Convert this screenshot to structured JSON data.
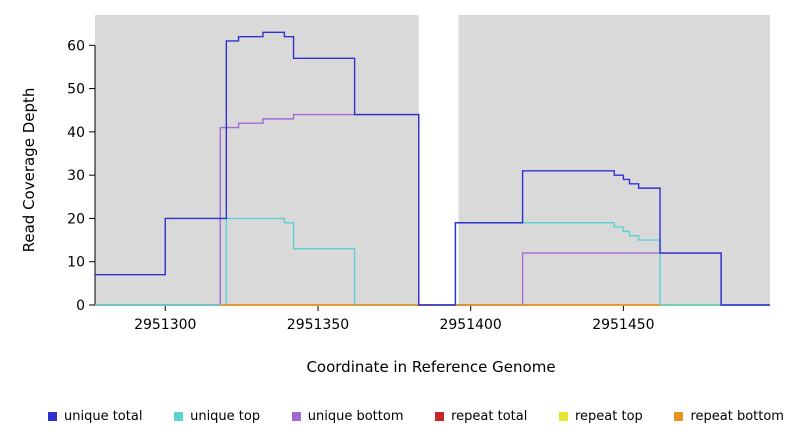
{
  "chart_data": {
    "type": "line",
    "subtype": "step-coverage-plot",
    "title": "",
    "xlabel": "Coordinate in Reference Genome",
    "ylabel": "Read Coverage Depth",
    "x_range": [
      2951277,
      2951498
    ],
    "x_ticks": [
      2951300,
      2951350,
      2951400,
      2951450
    ],
    "y_ticks": [
      0,
      10,
      20,
      30,
      40,
      50,
      60
    ],
    "y_max_display": 67,
    "panel_bg": "#d9d9d9",
    "axis_color": "#000000",
    "grid": "off",
    "legend_position": "bottom",
    "gap_band": {
      "x_start": 2951383,
      "x_end": 2951396,
      "color": "#ffffff"
    },
    "draw_order": [
      3,
      4,
      2,
      1,
      5,
      0
    ],
    "series": [
      {
        "name": "unique total",
        "color": "#3030cf",
        "points": [
          [
            2951277,
            7
          ],
          [
            2951300,
            20
          ],
          [
            2951320,
            61
          ],
          [
            2951324,
            62
          ],
          [
            2951332,
            63
          ],
          [
            2951339,
            62
          ],
          [
            2951342,
            57
          ],
          [
            2951362,
            44
          ],
          [
            2951383,
            0
          ],
          [
            2951395,
            19
          ],
          [
            2951417,
            31
          ],
          [
            2951447,
            30
          ],
          [
            2951450,
            29
          ],
          [
            2951452,
            28
          ],
          [
            2951455,
            27
          ],
          [
            2951462,
            12
          ],
          [
            2951482,
            0
          ],
          [
            2951498,
            0
          ]
        ]
      },
      {
        "name": "unique top",
        "color": "#5ad2d2",
        "points": [
          [
            2951277,
            0
          ],
          [
            2951320,
            20
          ],
          [
            2951339,
            19
          ],
          [
            2951342,
            13
          ],
          [
            2951362,
            0
          ],
          [
            2951395,
            19
          ],
          [
            2951447,
            18
          ],
          [
            2951450,
            17
          ],
          [
            2951452,
            16
          ],
          [
            2951455,
            15
          ],
          [
            2951462,
            0
          ],
          [
            2951498,
            0
          ]
        ]
      },
      {
        "name": "unique bottom",
        "color": "#a06ad2",
        "points": [
          [
            2951277,
            0
          ],
          [
            2951318,
            41
          ],
          [
            2951324,
            42
          ],
          [
            2951332,
            43
          ],
          [
            2951342,
            44
          ],
          [
            2951383,
            0
          ],
          [
            2951417,
            12
          ],
          [
            2951482,
            0
          ],
          [
            2951498,
            0
          ]
        ]
      },
      {
        "name": "repeat total",
        "color": "#c62828",
        "points": [
          [
            2951277,
            0
          ],
          [
            2951498,
            0
          ]
        ]
      },
      {
        "name": "repeat top",
        "color": "#e6e62e",
        "points": [
          [
            2951277,
            0
          ],
          [
            2951498,
            0
          ]
        ]
      },
      {
        "name": "repeat bottom",
        "color": "#e6941f",
        "points": [
          [
            2951318,
            0
          ],
          [
            2951462,
            0
          ]
        ]
      }
    ]
  }
}
